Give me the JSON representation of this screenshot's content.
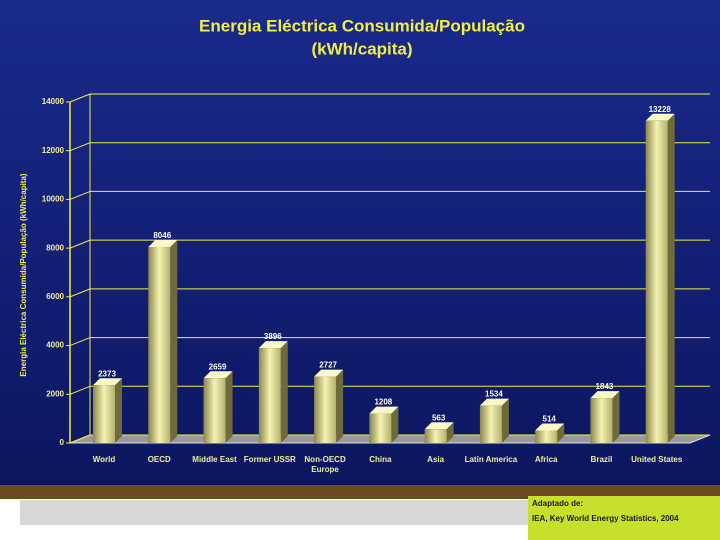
{
  "chart_data": {
    "type": "bar",
    "title": "Energia Eléctrica Consumida/População",
    "subtitle": "(kWh/capita)",
    "y_label": "Energia Eléctrica Consumida/População (kWh/capita)",
    "categories": [
      "World",
      "OECD",
      "Middle East",
      "Former USSR",
      "Non-OECD Europe",
      "China",
      "Asia",
      "Latin America",
      "Africa",
      "Brazil",
      "United States"
    ],
    "values": [
      2373,
      8046,
      2659,
      3896,
      2727,
      1208,
      563,
      1534,
      514,
      1843,
      13228
    ],
    "color": "#e8e49a",
    "ylim": [
      0,
      14000
    ],
    "yticks": [
      0,
      2000,
      4000,
      6000,
      8000,
      10000,
      12000,
      14000
    ],
    "grid": true,
    "source": [
      "Adaptado de:",
      "IEA, Key World Energy Statistics, 2004"
    ]
  }
}
